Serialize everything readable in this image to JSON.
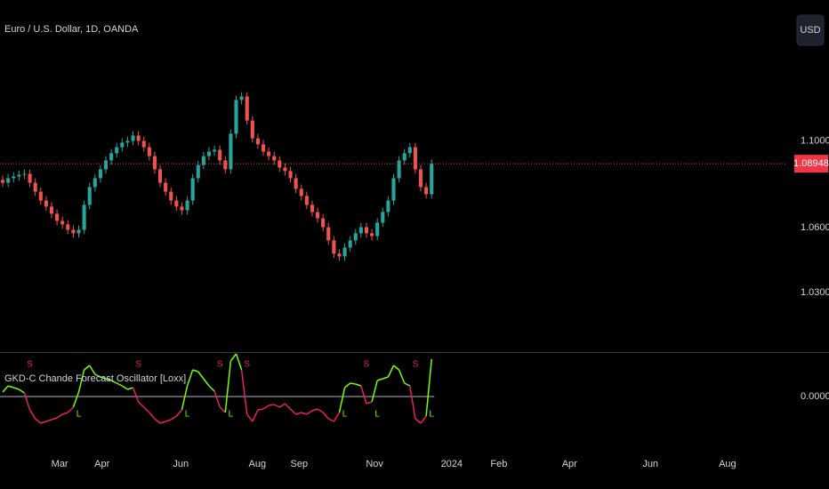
{
  "header": {
    "symbol": "Euro / U.S. Dollar, 1D, OANDA",
    "currency_button": "USD"
  },
  "chart_data": [
    {
      "type": "candlestick",
      "up_color": "#26a69a",
      "down_color": "#ef5350",
      "open": [
        1.082,
        1.0807,
        1.0828,
        1.0836,
        1.0844,
        1.0848,
        1.0807,
        1.0766,
        1.0725,
        1.0697,
        1.0664,
        1.0631,
        1.0615,
        1.059,
        1.0574,
        1.059,
        1.0705,
        1.0787,
        1.0828,
        1.0869,
        1.091,
        1.0943,
        1.0971,
        1.0992,
        1.1,
        1.1025,
        1.1,
        1.0971,
        1.093,
        1.0869,
        1.0807,
        1.0766,
        1.0725,
        1.0697,
        1.068,
        1.0725,
        1.0828,
        1.0889,
        1.093,
        1.0951,
        1.0959,
        1.091,
        1.0869,
        1.1033,
        1.1189,
        1.1205,
        1.1094,
        1.1012,
        1.0984,
        1.0951,
        1.093,
        1.091,
        1.0877,
        1.0861,
        1.0828,
        1.0779,
        1.0746,
        1.0705,
        1.0672,
        1.0643,
        1.0602,
        1.0541,
        1.048,
        1.0467,
        1.0508,
        1.0541,
        1.0574,
        1.0602,
        1.0574,
        1.0561,
        1.0623,
        1.0672,
        1.0725,
        1.0828,
        1.091,
        1.0943,
        1.0971,
        1.0869,
        1.0787,
        1.0754
      ],
      "high": [
        1.084,
        1.0848,
        1.0856,
        1.0864,
        1.0868,
        1.0868,
        1.0827,
        1.0786,
        1.0745,
        1.0717,
        1.0684,
        1.0651,
        1.0635,
        1.061,
        1.061,
        1.0725,
        1.0807,
        1.0848,
        1.0889,
        1.093,
        1.0963,
        1.0991,
        1.1012,
        1.102,
        1.1045,
        1.1045,
        1.102,
        1.0991,
        1.095,
        1.0889,
        1.0827,
        1.0786,
        1.0745,
        1.0717,
        1.0745,
        1.0848,
        1.0909,
        1.095,
        1.0971,
        1.0979,
        1.0979,
        1.093,
        1.1053,
        1.1209,
        1.1225,
        1.1225,
        1.1114,
        1.1032,
        1.1004,
        1.0971,
        1.095,
        1.093,
        1.0897,
        1.0881,
        1.0848,
        1.0799,
        1.0766,
        1.0725,
        1.0692,
        1.0663,
        1.0622,
        1.0561,
        1.05,
        1.0528,
        1.0561,
        1.0594,
        1.0622,
        1.0622,
        1.0594,
        1.0643,
        1.0692,
        1.0745,
        1.0848,
        1.093,
        1.0963,
        1.0991,
        1.0991,
        1.0889,
        1.0807,
        1.0915
      ],
      "low": [
        1.0787,
        1.0787,
        1.0808,
        1.0816,
        1.0824,
        1.0787,
        1.0746,
        1.0705,
        1.0677,
        1.0644,
        1.0611,
        1.0595,
        1.057,
        1.0554,
        1.0554,
        1.057,
        1.0685,
        1.0767,
        1.0808,
        1.0849,
        1.089,
        1.0923,
        1.0951,
        1.0972,
        1.098,
        1.098,
        1.0951,
        1.091,
        1.0849,
        1.0787,
        1.0746,
        1.0705,
        1.0677,
        1.066,
        1.066,
        1.0705,
        1.0808,
        1.0869,
        1.091,
        1.0931,
        1.089,
        1.0849,
        1.0849,
        1.1013,
        1.1169,
        1.1074,
        1.0992,
        1.0964,
        1.0931,
        1.091,
        1.089,
        1.0857,
        1.0841,
        1.0808,
        1.0759,
        1.0726,
        1.0685,
        1.0652,
        1.0623,
        1.0582,
        1.0521,
        1.046,
        1.0447,
        1.0447,
        1.0488,
        1.0521,
        1.0554,
        1.0554,
        1.0541,
        1.0541,
        1.0603,
        1.0652,
        1.0705,
        1.0808,
        1.089,
        1.0923,
        1.0849,
        1.0767,
        1.0734,
        1.0734
      ],
      "close": [
        1.0807,
        1.0828,
        1.0836,
        1.0844,
        1.0848,
        1.0807,
        1.0766,
        1.0725,
        1.0697,
        1.0664,
        1.0631,
        1.0615,
        1.059,
        1.0574,
        1.059,
        1.0705,
        1.0787,
        1.0828,
        1.0869,
        1.091,
        1.0943,
        1.0971,
        1.0992,
        1.1,
        1.1025,
        1.1,
        1.0971,
        1.093,
        1.0869,
        1.0807,
        1.0766,
        1.0725,
        1.0697,
        1.068,
        1.0725,
        1.0828,
        1.0889,
        1.093,
        1.0951,
        1.0959,
        1.091,
        1.0869,
        1.1033,
        1.1189,
        1.1205,
        1.1094,
        1.1012,
        1.0984,
        1.0951,
        1.093,
        1.091,
        1.0877,
        1.0861,
        1.0828,
        1.0779,
        1.0746,
        1.0705,
        1.0672,
        1.0643,
        1.0602,
        1.0541,
        1.048,
        1.0467,
        1.0508,
        1.0541,
        1.0574,
        1.0602,
        1.0574,
        1.0561,
        1.0623,
        1.0672,
        1.0725,
        1.0828,
        1.091,
        1.0943,
        1.0971,
        1.0869,
        1.0787,
        1.0754,
        1.0895
      ],
      "last_price": 1.08948,
      "last_price_color": "#f23645",
      "ylim": [
        1.003,
        1.165
      ],
      "yticks": [
        {
          "value": 1.03,
          "label": "1.03000"
        },
        {
          "value": 1.06,
          "label": "1.06000"
        },
        {
          "value": 1.1,
          "label": "1.10000"
        }
      ],
      "xlim": [
        0,
        145
      ],
      "xticks": [
        {
          "value": 11,
          "label": "Mar"
        },
        {
          "value": 18.8,
          "label": "Apr"
        },
        {
          "value": 33.3,
          "label": "Jun"
        },
        {
          "value": 47.4,
          "label": "Aug"
        },
        {
          "value": 55.1,
          "label": "Sep"
        },
        {
          "value": 69,
          "label": "Nov"
        },
        {
          "value": 83.2,
          "label": "2024"
        },
        {
          "value": 91.9,
          "label": "Feb"
        },
        {
          "value": 104.9,
          "label": "Apr"
        },
        {
          "value": 119.8,
          "label": "Jun"
        },
        {
          "value": 134,
          "label": "Aug"
        }
      ]
    },
    {
      "type": "oscillator",
      "title": "GKD-C Chande Forecast Oscillator [Loxx]",
      "up_color": "#76ff03",
      "down_color": "#e91e63",
      "values": [
        5,
        12,
        10,
        8,
        4,
        -15,
        -25,
        -30,
        -28,
        -26,
        -24,
        -20,
        -18,
        -12,
        5,
        30,
        35,
        25,
        22,
        20,
        18,
        15,
        12,
        8,
        10,
        -6,
        -12,
        -18,
        -25,
        -30,
        -28,
        -26,
        -22,
        -15,
        12,
        30,
        28,
        20,
        12,
        6,
        -12,
        -18,
        40,
        48,
        30,
        -20,
        -28,
        -15,
        -14,
        -10,
        -9,
        -12,
        -8,
        -14,
        -20,
        -18,
        -20,
        -16,
        -14,
        -18,
        -25,
        -28,
        -18,
        10,
        15,
        14,
        12,
        -8,
        -6,
        18,
        20,
        22,
        35,
        30,
        15,
        12,
        -25,
        -30,
        -22,
        42
      ],
      "signal_labels": {
        "long": "L",
        "short": "S"
      },
      "ylim": [
        -50,
        50
      ],
      "yticks": [
        {
          "value": 0,
          "label": "0.00000"
        }
      ]
    }
  ]
}
